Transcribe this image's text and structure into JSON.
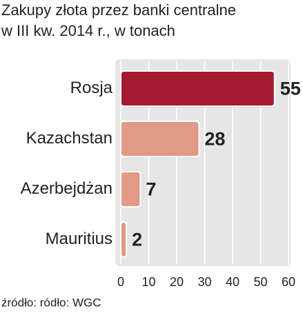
{
  "chart_data": {
    "type": "bar",
    "orientation": "horizontal",
    "title": "Zakupy złota przez banki centralne",
    "subtitle": "w III kw. 2014 r., w tonach",
    "categories": [
      "Rosja",
      "Kazachstan",
      "Azerbejdżan",
      "Mauritius"
    ],
    "values": [
      55,
      28,
      7,
      2
    ],
    "colors": [
      "#a51c30",
      "#e09a85",
      "#e09a85",
      "#e09a85"
    ],
    "xlim": [
      0,
      60
    ],
    "xticks": [
      0,
      10,
      20,
      30,
      40,
      50,
      60
    ],
    "grid": true,
    "source": "źródło: ródło: WGC"
  }
}
